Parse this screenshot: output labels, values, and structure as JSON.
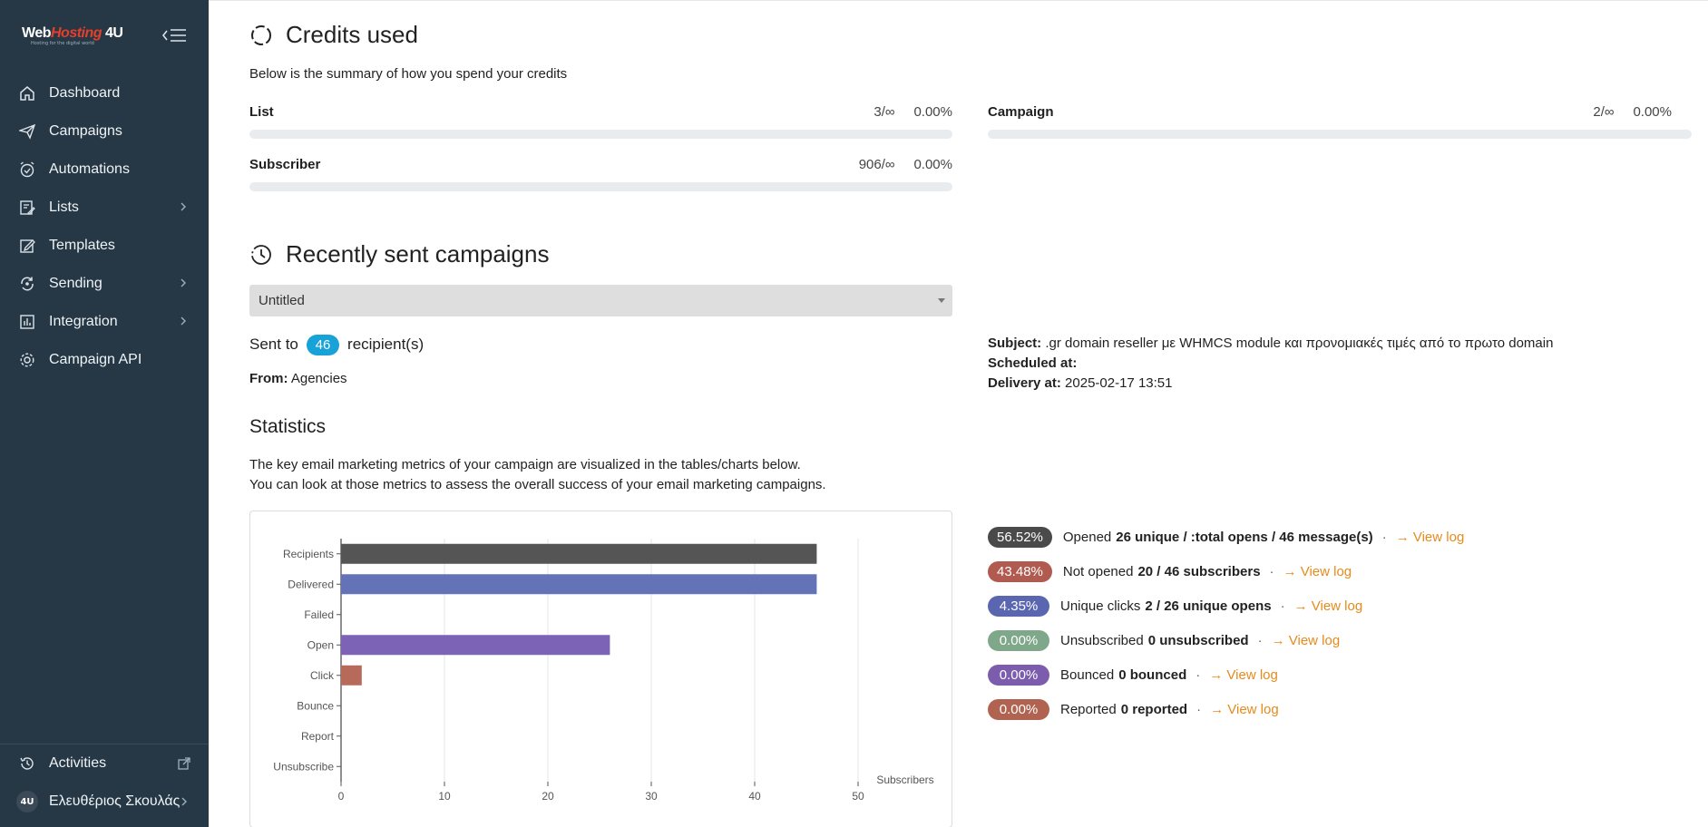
{
  "sidebar": {
    "logo": {
      "web": "Web",
      "hosting": "Hosting",
      "four_u": "4U",
      "tagline": "Hosting for the digital world"
    },
    "items": [
      {
        "label": "Dashboard",
        "icon": "home-icon"
      },
      {
        "label": "Campaigns",
        "icon": "paper-plane-icon"
      },
      {
        "label": "Automations",
        "icon": "alarm-clock-icon"
      },
      {
        "label": "Lists",
        "icon": "list-edit-icon",
        "has_submenu": true
      },
      {
        "label": "Templates",
        "icon": "pencil-square-icon"
      },
      {
        "label": "Sending",
        "icon": "refresh-circle-icon",
        "has_submenu": true
      },
      {
        "label": "Integration",
        "icon": "integration-icon",
        "has_submenu": true
      },
      {
        "label": "Campaign API",
        "icon": "gear-api-icon"
      }
    ],
    "bottom": {
      "activities": "Activities",
      "user_name": "Ελευθέριος Σκουλάς",
      "avatar_text": "4U"
    }
  },
  "credits": {
    "title": "Credits used",
    "description": "Below is the summary of how you spend your credits",
    "items": [
      {
        "label": "List",
        "count": "3/∞",
        "percent": "0.00%",
        "fraction": 0
      },
      {
        "label": "Campaign",
        "count": "2/∞",
        "percent": "0.00%",
        "fraction": 0
      },
      {
        "label": "Subscriber",
        "count": "906/∞",
        "percent": "0.00%",
        "fraction": 0
      }
    ]
  },
  "recent": {
    "title": "Recently sent campaigns",
    "selected_campaign": "Untitled",
    "sent_to_prefix": "Sent to",
    "recipients": "46",
    "sent_to_suffix": "recipient(s)",
    "from_label": "From:",
    "from_value": "Agencies",
    "subject_label": "Subject:",
    "subject_value": ".gr domain reseller με WHMCS module και προνομιακές τιμές από το πρωτο domain",
    "scheduled_label": "Scheduled at:",
    "scheduled_value": "",
    "delivery_label": "Delivery at:",
    "delivery_value": "2025-02-17 13:51"
  },
  "statistics": {
    "title": "Statistics",
    "description_1": "The key email marketing metrics of your campaign are visualized in the tables/charts below.",
    "description_2": "You can look at those metrics to assess the overall success of your email marketing campaigns."
  },
  "chart_data": {
    "type": "bar",
    "orientation": "horizontal",
    "categories": [
      "Recipients",
      "Delivered",
      "Failed",
      "Open",
      "Click",
      "Bounce",
      "Report",
      "Unsubscribe"
    ],
    "values": [
      46,
      46,
      0,
      26,
      2,
      0,
      0,
      0
    ],
    "colors": [
      "#555555",
      "#6472b8",
      "#e06666",
      "#7c63b5",
      "#b86a5a",
      "#8a6bb8",
      "#b86a5a",
      "#7fa88a"
    ],
    "xlabel": "Subscribers",
    "xlim": [
      0,
      50
    ],
    "xticks": [
      0,
      10,
      20,
      30,
      40,
      50
    ],
    "grid": true
  },
  "metrics": [
    {
      "percent": "56.52%",
      "color": "#4a4a4a",
      "label": "Opened",
      "value": "26 unique / :total opens / 46 message(s)",
      "link": "View log"
    },
    {
      "percent": "43.48%",
      "color": "#b05a50",
      "label": "Not opened",
      "value": "20 / 46 subscribers",
      "link": "View log"
    },
    {
      "percent": "4.35%",
      "color": "#5a66b0",
      "label": "Unique clicks",
      "value": "2 / 26 unique opens",
      "link": "View log"
    },
    {
      "percent": "0.00%",
      "color": "#7fa88a",
      "label": "Unsubscribed",
      "value": "0 unsubscribed",
      "link": "View log"
    },
    {
      "percent": "0.00%",
      "color": "#7c5cac",
      "label": "Bounced",
      "value": "0 bounced",
      "link": "View log"
    },
    {
      "percent": "0.00%",
      "color": "#b06350",
      "label": "Reported",
      "value": "0 reported",
      "link": "View log"
    }
  ]
}
